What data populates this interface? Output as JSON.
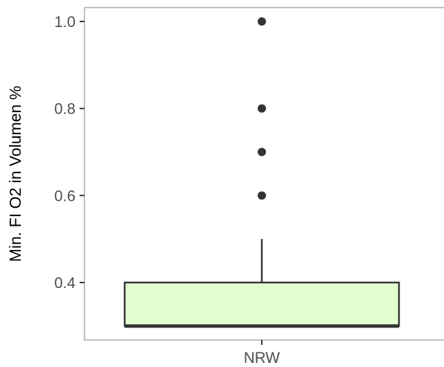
{
  "chart_data": {
    "type": "boxplot",
    "categories": [
      "NRW"
    ],
    "boxes": [
      {
        "category": "NRW",
        "q1": 0.3,
        "median": 0.3,
        "q3": 0.4,
        "whisker_low": 0.3,
        "whisker_high": 0.5,
        "outliers": [
          0.6,
          0.7,
          0.8,
          1.0
        ]
      }
    ],
    "ylabel": "Min. FI O2 in Volumen %",
    "xlabel": "",
    "ylim": [
      0.28,
      1.03
    ],
    "yticks": [
      0.4,
      0.6,
      0.8,
      1.0
    ],
    "ytick_labels": [
      "0.4",
      "0.6",
      "0.8",
      "1.0"
    ],
    "grid": false,
    "box_fill": "#e2ffcf",
    "line_color": "#333333",
    "panel_border_color": "#bfbfbf"
  }
}
